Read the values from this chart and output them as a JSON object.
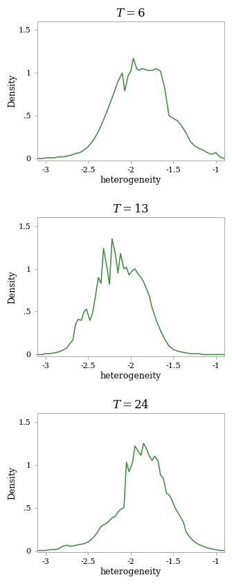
{
  "line_color": "#3a8a3a",
  "line_width": 1.1,
  "xlim": [
    -3.1,
    -0.9
  ],
  "ylim": [
    -0.02,
    1.6
  ],
  "yticks": [
    0,
    0.5,
    1.0,
    1.5
  ],
  "ytick_labels": [
    "0",
    ".5",
    "1",
    "1.5"
  ],
  "xticks": [
    -3,
    -2.5,
    -2,
    -1.5,
    -1
  ],
  "xtick_labels": [
    "-3",
    "-2.5",
    "-2",
    "-1.5",
    "-1"
  ],
  "xlabel": "heterogeneity",
  "ylabel": "Density",
  "titles": [
    "$T = 6$",
    "$T = 13$",
    "$T = 24$"
  ],
  "curves": [
    {
      "x": [
        -3.1,
        -3.05,
        -3.0,
        -2.95,
        -2.9,
        -2.85,
        -2.8,
        -2.75,
        -2.7,
        -2.65,
        -2.6,
        -2.55,
        -2.5,
        -2.45,
        -2.4,
        -2.35,
        -2.3,
        -2.25,
        -2.2,
        -2.15,
        -2.1,
        -2.07,
        -2.03,
        -2.0,
        -1.97,
        -1.93,
        -1.9,
        -1.87,
        -1.83,
        -1.8,
        -1.75,
        -1.7,
        -1.65,
        -1.6,
        -1.55,
        -1.5,
        -1.45,
        -1.4,
        -1.35,
        -1.3,
        -1.25,
        -1.2,
        -1.15,
        -1.1,
        -1.05,
        -1.0,
        -0.95,
        -0.9
      ],
      "y": [
        0.0,
        0.0,
        0.01,
        0.01,
        0.01,
        0.02,
        0.02,
        0.03,
        0.04,
        0.06,
        0.07,
        0.1,
        0.14,
        0.2,
        0.28,
        0.38,
        0.5,
        0.63,
        0.76,
        0.9,
        1.0,
        0.79,
        0.97,
        1.02,
        1.17,
        1.05,
        1.03,
        1.05,
        1.04,
        1.03,
        1.03,
        1.05,
        1.02,
        0.82,
        0.5,
        0.47,
        0.44,
        0.38,
        0.3,
        0.2,
        0.15,
        0.12,
        0.1,
        0.07,
        0.05,
        0.07,
        0.02,
        0.0
      ]
    },
    {
      "x": [
        -3.1,
        -3.05,
        -3.0,
        -2.95,
        -2.9,
        -2.85,
        -2.8,
        -2.75,
        -2.72,
        -2.68,
        -2.65,
        -2.62,
        -2.58,
        -2.55,
        -2.52,
        -2.48,
        -2.45,
        -2.42,
        -2.38,
        -2.35,
        -2.32,
        -2.28,
        -2.25,
        -2.22,
        -2.18,
        -2.15,
        -2.12,
        -2.08,
        -2.05,
        -2.02,
        -1.98,
        -1.95,
        -1.92,
        -1.88,
        -1.85,
        -1.82,
        -1.78,
        -1.75,
        -1.7,
        -1.65,
        -1.6,
        -1.55,
        -1.5,
        -1.45,
        -1.4,
        -1.35,
        -1.3,
        -1.25,
        -1.2,
        -1.15,
        -1.1,
        -1.05,
        -1.0,
        -0.95,
        -0.9
      ],
      "y": [
        0.0,
        0.0,
        0.01,
        0.01,
        0.02,
        0.03,
        0.05,
        0.08,
        0.12,
        0.17,
        0.35,
        0.41,
        0.4,
        0.5,
        0.53,
        0.4,
        0.48,
        0.65,
        0.9,
        0.83,
        1.24,
        1.02,
        0.82,
        1.35,
        1.17,
        0.95,
        1.18,
        1.0,
        1.02,
        0.93,
        0.98,
        1.0,
        0.95,
        0.9,
        0.85,
        0.78,
        0.68,
        0.55,
        0.4,
        0.28,
        0.18,
        0.1,
        0.06,
        0.04,
        0.03,
        0.02,
        0.01,
        0.01,
        0.01,
        0.0,
        0.0,
        0.0,
        0.0,
        0.0,
        0.0
      ]
    },
    {
      "x": [
        -3.1,
        -3.05,
        -3.0,
        -2.95,
        -2.9,
        -2.85,
        -2.8,
        -2.75,
        -2.7,
        -2.65,
        -2.6,
        -2.55,
        -2.5,
        -2.45,
        -2.4,
        -2.35,
        -2.32,
        -2.28,
        -2.25,
        -2.22,
        -2.18,
        -2.15,
        -2.12,
        -2.08,
        -2.05,
        -2.02,
        -1.98,
        -1.95,
        -1.92,
        -1.88,
        -1.85,
        -1.82,
        -1.78,
        -1.75,
        -1.72,
        -1.68,
        -1.65,
        -1.62,
        -1.58,
        -1.55,
        -1.52,
        -1.48,
        -1.45,
        -1.42,
        -1.38,
        -1.35,
        -1.3,
        -1.25,
        -1.2,
        -1.15,
        -1.1,
        -1.05,
        -1.0,
        -0.95,
        -0.9
      ],
      "y": [
        0.0,
        0.0,
        0.0,
        0.01,
        0.01,
        0.02,
        0.05,
        0.06,
        0.05,
        0.06,
        0.07,
        0.08,
        0.1,
        0.14,
        0.2,
        0.28,
        0.3,
        0.32,
        0.35,
        0.38,
        0.4,
        0.45,
        0.48,
        0.5,
        1.03,
        0.92,
        1.02,
        1.22,
        1.17,
        1.11,
        1.25,
        1.2,
        1.1,
        1.05,
        1.1,
        1.05,
        0.88,
        0.85,
        0.67,
        0.65,
        0.6,
        0.5,
        0.45,
        0.4,
        0.33,
        0.22,
        0.15,
        0.1,
        0.07,
        0.05,
        0.03,
        0.02,
        0.01,
        0.0,
        0.0
      ]
    }
  ],
  "title_fontsize": 12,
  "label_fontsize": 9,
  "tick_fontsize": 8,
  "bg_color": "#ffffff",
  "spine_color": "#aaaaaa"
}
